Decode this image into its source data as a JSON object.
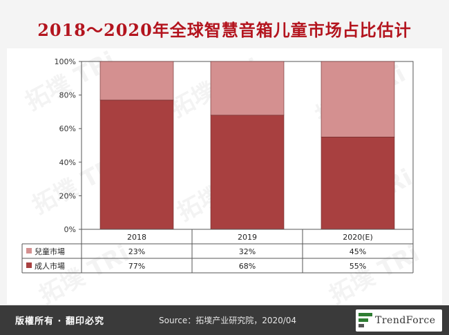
{
  "title": "2018～2020年全球智慧音箱儿童市场占比估计",
  "watermark_text": "拓墣 TRi",
  "footer": {
    "rights": "版權所有 · 翻印必究",
    "source": "Source：拓墣产业研究院，2020/04",
    "logo": "TrendForce"
  },
  "chart_data": {
    "type": "bar",
    "stacked": true,
    "categories": [
      "2018",
      "2019",
      "2020(E)"
    ],
    "series": [
      {
        "name": "成人市場",
        "values": [
          77,
          68,
          55
        ],
        "labels": [
          "77%",
          "68%",
          "55%"
        ],
        "color": "#a84040"
      },
      {
        "name": "兒童市場",
        "values": [
          23,
          32,
          45
        ],
        "labels": [
          "23%",
          "32%",
          "45%"
        ],
        "color": "#d49090"
      }
    ],
    "table_order": [
      1,
      0
    ],
    "ylim": [
      0,
      100
    ],
    "yticks": [
      "0%",
      "20%",
      "40%",
      "60%",
      "80%",
      "100%"
    ],
    "grid": false,
    "data_table": true
  }
}
